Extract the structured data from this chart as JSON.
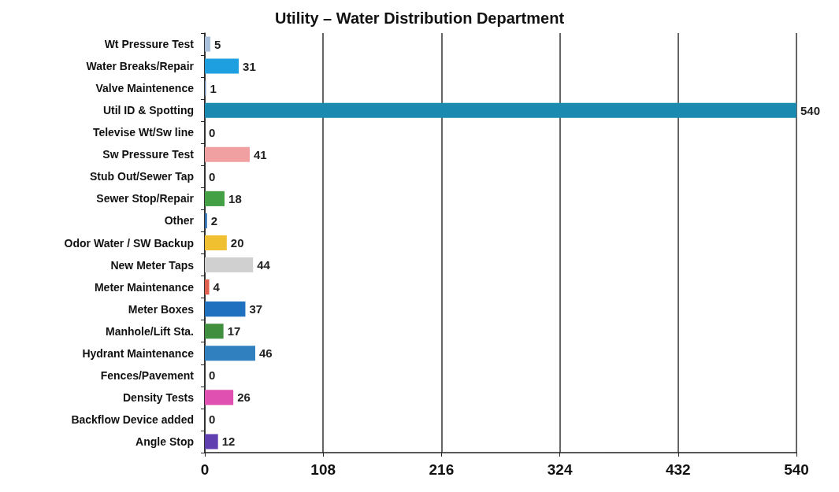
{
  "chart_data": {
    "type": "bar",
    "orientation": "horizontal",
    "title": "Utility – Water Distribution Department",
    "categories": [
      "Wt Pressure Test",
      "Water Breaks/Repair",
      "Valve Maintenence",
      "Util ID & Spotting",
      "Televise Wt/Sw line",
      "Sw Pressure Test",
      "Stub Out/Sewer Tap",
      "Sewer Stop/Repair",
      "Other",
      "Odor Water / SW Backup",
      "New Meter Taps",
      "Meter Maintenance",
      "Meter Boxes",
      "Manhole/Lift Sta.",
      "Hydrant Maintenance",
      "Fences/Pavement",
      "Density Tests",
      "Backflow Device added",
      "Angle Stop"
    ],
    "values": [
      5,
      31,
      1,
      540,
      0,
      41,
      0,
      18,
      2,
      20,
      44,
      4,
      37,
      17,
      46,
      0,
      26,
      0,
      12
    ],
    "colors": [
      "#a9c0dc",
      "#1e9fe0",
      "#6a88b8",
      "#1a8ab0",
      "#909090",
      "#f0a0a0",
      "#5070b0",
      "#44a044",
      "#3070b0",
      "#f0c030",
      "#d0d0d0",
      "#e06050",
      "#2070c0",
      "#3f8f3f",
      "#3080c0",
      "#c09030",
      "#e050b0",
      "#b06050",
      "#6040b0"
    ],
    "xlim": [
      0,
      540
    ],
    "xticks": [
      0,
      108,
      216,
      324,
      432,
      540
    ],
    "grid": "x",
    "data_labels": true
  }
}
